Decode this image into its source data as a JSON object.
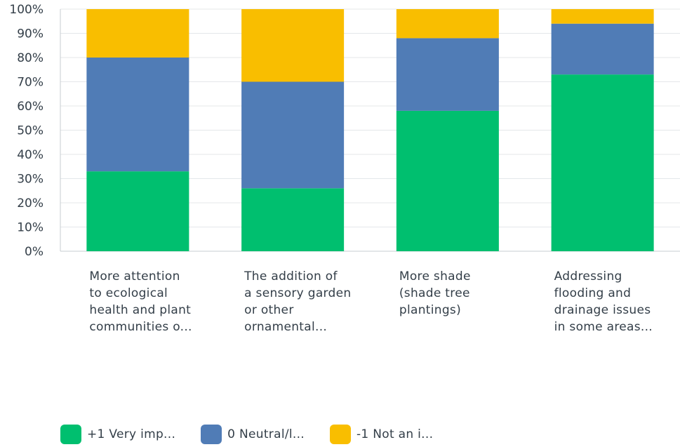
{
  "chart_data": {
    "type": "bar",
    "stacked": true,
    "categories": [
      [
        "More attention",
        "to ecological",
        "health and plant",
        "communities o..."
      ],
      [
        "The addition of",
        "a sensory garden",
        "or other",
        "ornamental..."
      ],
      [
        "More shade",
        "(shade tree",
        "plantings)"
      ],
      [
        "Addressing",
        "flooding and",
        "drainage issues",
        "in some areas..."
      ]
    ],
    "series": [
      {
        "name": "+1 Very imp...",
        "color": "#00bf6f",
        "values": [
          33,
          26,
          58,
          73
        ]
      },
      {
        "name": "0 Neutral/l...",
        "color": "#507cb6",
        "values": [
          47,
          44,
          30,
          21
        ]
      },
      {
        "name": "-1 Not an i...",
        "color": "#f9be00",
        "values": [
          20,
          30,
          12,
          6
        ]
      }
    ],
    "yticks": [
      "0%",
      "10%",
      "20%",
      "30%",
      "40%",
      "50%",
      "60%",
      "70%",
      "80%",
      "90%",
      "100%"
    ],
    "ylim": [
      0,
      100
    ],
    "grid": true,
    "legend": "bottom-left"
  }
}
